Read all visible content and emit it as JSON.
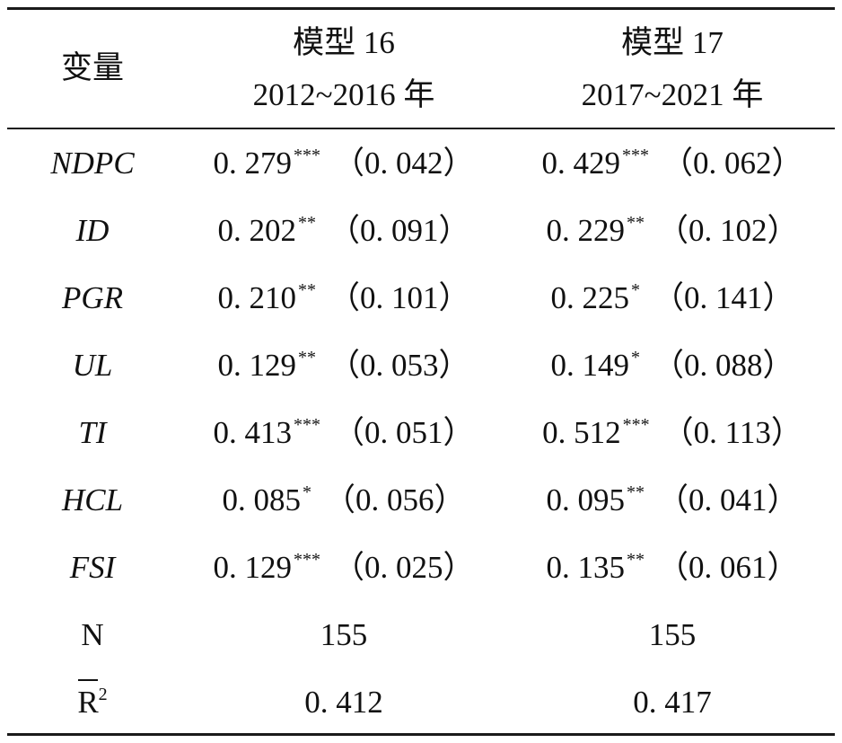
{
  "header": {
    "var_label": "变量",
    "model1": {
      "name": "模型 16",
      "period": "2012~2016 年"
    },
    "model2": {
      "name": "模型 17",
      "period": "2017~2021 年"
    }
  },
  "rows": [
    {
      "var": "NDPC",
      "m1": {
        "coef": "0. 279",
        "stars": "***",
        "se": "（0. 042）"
      },
      "m2": {
        "coef": "0. 429",
        "stars": "***",
        "se": "（0. 062）"
      }
    },
    {
      "var": "ID",
      "m1": {
        "coef": "0. 202",
        "stars": "**",
        "se": "（0. 091）"
      },
      "m2": {
        "coef": "0. 229",
        "stars": "**",
        "se": "（0. 102）"
      }
    },
    {
      "var": "PGR",
      "m1": {
        "coef": "0. 210",
        "stars": "**",
        "se": "（0. 101）"
      },
      "m2": {
        "coef": "0. 225",
        "stars": "*",
        "se": "（0. 141）"
      }
    },
    {
      "var": "UL",
      "m1": {
        "coef": "0. 129",
        "stars": "**",
        "se": "（0. 053）"
      },
      "m2": {
        "coef": "0. 149",
        "stars": "*",
        "se": "（0. 088）"
      }
    },
    {
      "var": "TI",
      "m1": {
        "coef": "0. 413",
        "stars": "***",
        "se": "（0. 051）"
      },
      "m2": {
        "coef": "0. 512",
        "stars": "***",
        "se": "（0. 113）"
      }
    },
    {
      "var": "HCL",
      "m1": {
        "coef": "0. 085",
        "stars": "*",
        "se": "（0. 056）"
      },
      "m2": {
        "coef": "0. 095",
        "stars": "**",
        "se": "（0. 041）"
      }
    },
    {
      "var": "FSI",
      "m1": {
        "coef": "0. 129",
        "stars": "***",
        "se": "（0. 025）"
      },
      "m2": {
        "coef": "0. 135",
        "stars": "**",
        "se": "（0. 061）"
      }
    }
  ],
  "n_row": {
    "label": "N",
    "m1": "155",
    "m2": "155"
  },
  "r2_row": {
    "label": "R",
    "sup": "2",
    "m1": "0. 412",
    "m2": "0. 417"
  }
}
